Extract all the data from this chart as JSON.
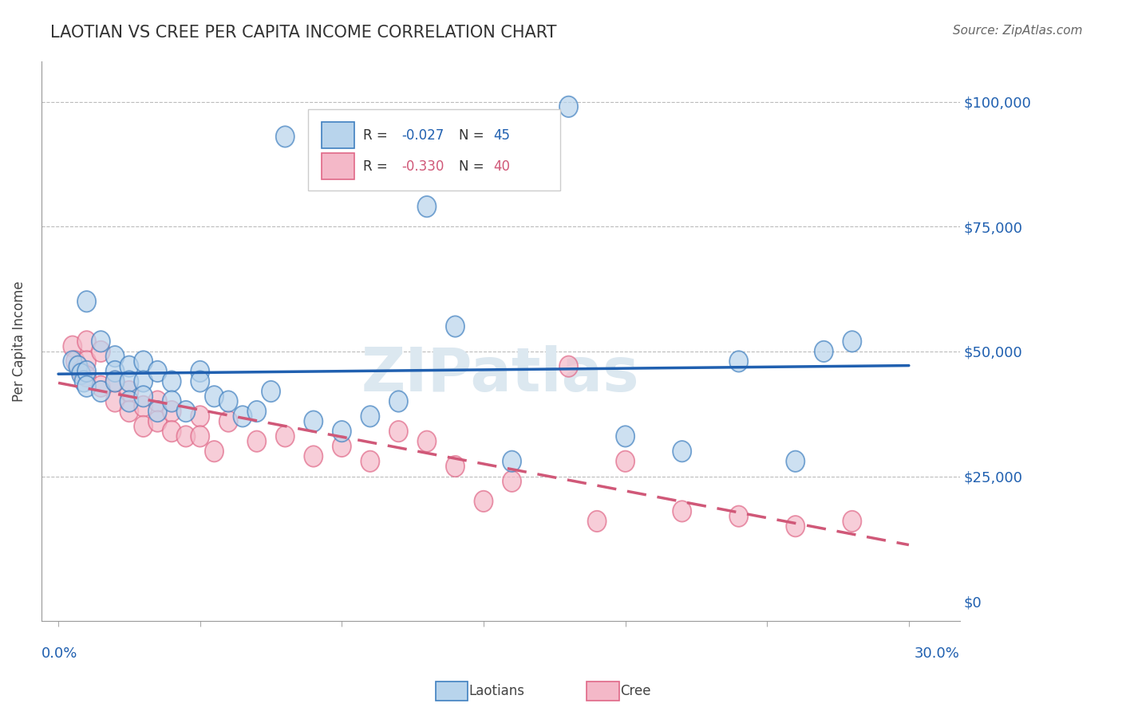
{
  "title": "LAOTIAN VS CREE PER CAPITA INCOME CORRELATION CHART",
  "source": "Source: ZipAtlas.com",
  "ylabel": "Per Capita Income",
  "ytick_labels": [
    "$0",
    "$25,000",
    "$50,000",
    "$75,000",
    "$100,000"
  ],
  "ytick_values": [
    0,
    25000,
    50000,
    75000,
    100000
  ],
  "xmin": 0.0,
  "xmax": 0.3,
  "ymin": 0,
  "ymax": 108000,
  "blue_R": -0.027,
  "blue_N": 45,
  "pink_R": -0.33,
  "pink_N": 40,
  "blue_face_color": "#b8d4ec",
  "blue_edge_color": "#4080c0",
  "blue_line_color": "#2060b0",
  "pink_face_color": "#f4b8c8",
  "pink_edge_color": "#e06888",
  "pink_line_color": "#d05878",
  "watermark": "ZIPatlas",
  "blue_x": [
    0.005,
    0.007,
    0.008,
    0.009,
    0.01,
    0.01,
    0.01,
    0.015,
    0.015,
    0.02,
    0.02,
    0.02,
    0.025,
    0.025,
    0.025,
    0.03,
    0.03,
    0.03,
    0.035,
    0.035,
    0.04,
    0.04,
    0.045,
    0.05,
    0.05,
    0.055,
    0.06,
    0.065,
    0.07,
    0.075,
    0.08,
    0.09,
    0.1,
    0.11,
    0.12,
    0.13,
    0.14,
    0.16,
    0.18,
    0.2,
    0.22,
    0.24,
    0.26,
    0.27,
    0.28
  ],
  "blue_y": [
    48000,
    47000,
    45500,
    44000,
    60000,
    46000,
    43000,
    52000,
    42000,
    49000,
    46000,
    44000,
    47000,
    44000,
    40000,
    48000,
    44000,
    41000,
    46000,
    38000,
    44000,
    40000,
    38000,
    46000,
    44000,
    41000,
    40000,
    37000,
    38000,
    42000,
    93000,
    36000,
    34000,
    37000,
    40000,
    79000,
    55000,
    28000,
    99000,
    33000,
    30000,
    48000,
    28000,
    50000,
    52000
  ],
  "pink_x": [
    0.005,
    0.006,
    0.008,
    0.01,
    0.01,
    0.01,
    0.015,
    0.015,
    0.02,
    0.02,
    0.025,
    0.025,
    0.03,
    0.03,
    0.035,
    0.035,
    0.04,
    0.04,
    0.045,
    0.05,
    0.05,
    0.055,
    0.06,
    0.07,
    0.08,
    0.09,
    0.1,
    0.11,
    0.12,
    0.13,
    0.14,
    0.15,
    0.16,
    0.18,
    0.19,
    0.2,
    0.22,
    0.24,
    0.26,
    0.28
  ],
  "pink_y": [
    51000,
    48000,
    46000,
    52000,
    48000,
    45000,
    50000,
    43000,
    44000,
    40000,
    42000,
    38000,
    39000,
    35000,
    40000,
    36000,
    38000,
    34000,
    33000,
    37000,
    33000,
    30000,
    36000,
    32000,
    33000,
    29000,
    31000,
    28000,
    34000,
    32000,
    27000,
    20000,
    24000,
    47000,
    16000,
    28000,
    18000,
    17000,
    15000,
    16000
  ]
}
